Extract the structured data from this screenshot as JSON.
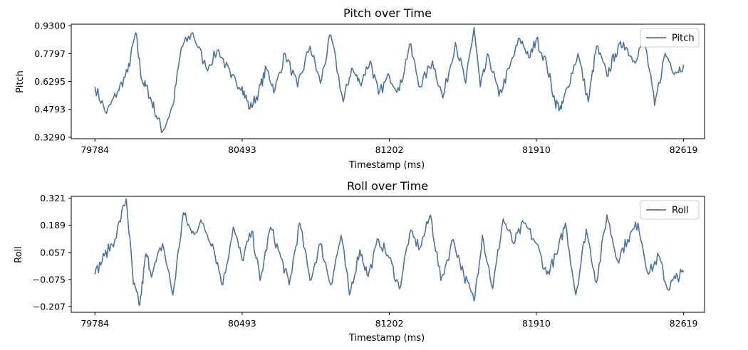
{
  "chart_data": [
    {
      "type": "line",
      "title": "Pitch over Time",
      "xlabel": "Timestamp (ms)",
      "ylabel": "Pitch",
      "xlim": [
        79670,
        82720
      ],
      "ylim": [
        0.321,
        0.938
      ],
      "xticks": [
        79784,
        80493,
        81202,
        81910,
        82619
      ],
      "xtick_labels": [
        "79784",
        "80493",
        "81202",
        "81910",
        "82619"
      ],
      "yticks": [
        0.329,
        0.4793,
        0.6295,
        0.7797,
        0.93
      ],
      "ytick_labels": [
        "0.3290",
        "0.4793",
        "0.6295",
        "0.7797",
        "0.9300"
      ],
      "legend": "top-right",
      "grid": false,
      "series": [
        {
          "name": "Pitch",
          "color": "#4a74a8",
          "x": [
            79784,
            79840,
            79893,
            79942,
            79980,
            80010,
            80040,
            80070,
            80110,
            80160,
            80200,
            80255,
            80320,
            80380,
            80440,
            80493,
            80530,
            80572,
            80610,
            80650,
            80700,
            80760,
            80820,
            80870,
            80920,
            80980,
            81020,
            81060,
            81110,
            81150,
            81202,
            81250,
            81300,
            81350,
            81410,
            81460,
            81520,
            81570,
            81610,
            81640,
            81680,
            81730,
            81780,
            81830,
            81880,
            81910,
            81960,
            82000,
            82030,
            82060,
            82110,
            82160,
            82200,
            82250,
            82290,
            82330,
            82380,
            82430,
            82480,
            82530,
            82580,
            82619
          ],
          "y": [
            0.601,
            0.458,
            0.575,
            0.681,
            0.892,
            0.638,
            0.578,
            0.482,
            0.36,
            0.5,
            0.81,
            0.892,
            0.7,
            0.8,
            0.65,
            0.601,
            0.482,
            0.57,
            0.7,
            0.58,
            0.78,
            0.6,
            0.82,
            0.62,
            0.88,
            0.52,
            0.7,
            0.62,
            0.74,
            0.56,
            0.66,
            0.58,
            0.83,
            0.6,
            0.74,
            0.54,
            0.84,
            0.62,
            0.92,
            0.6,
            0.77,
            0.55,
            0.7,
            0.86,
            0.76,
            0.86,
            0.72,
            0.52,
            0.48,
            0.6,
            0.78,
            0.52,
            0.82,
            0.66,
            0.78,
            0.84,
            0.74,
            0.86,
            0.5,
            0.78,
            0.68,
            0.72
          ]
        }
      ]
    },
    {
      "type": "line",
      "title": "Roll over Time",
      "xlabel": "Timestamp (ms)",
      "ylabel": "Roll",
      "xlim": [
        79670,
        82720
      ],
      "ylim": [
        -0.235,
        0.33
      ],
      "xticks": [
        79784,
        80493,
        81202,
        81910,
        82619
      ],
      "xtick_labels": [
        "79784",
        "80493",
        "81202",
        "81910",
        "82619"
      ],
      "yticks": [
        -0.207,
        -0.075,
        0.057,
        0.189,
        0.321
      ],
      "ytick_labels": [
        "−0.207",
        "−0.075",
        "0.057",
        "0.189",
        "0.321"
      ],
      "legend": "top-right",
      "grid": false,
      "series": [
        {
          "name": "Roll",
          "color": "#4a74a8",
          "x": [
            79784,
            79830,
            79880,
            79935,
            79970,
            80000,
            80030,
            80060,
            80110,
            80160,
            80210,
            80250,
            80300,
            80350,
            80400,
            80450,
            80493,
            80540,
            80580,
            80630,
            80680,
            80720,
            80770,
            80820,
            80870,
            80920,
            80970,
            81010,
            81060,
            81100,
            81150,
            81202,
            81250,
            81300,
            81350,
            81400,
            81450,
            81510,
            81560,
            81610,
            81650,
            81700,
            81750,
            81800,
            81850,
            81910,
            81960,
            82010,
            82050,
            82100,
            82150,
            82200,
            82250,
            82300,
            82350,
            82400,
            82450,
            82500,
            82540,
            82580,
            82619
          ],
          "y": [
            -0.05,
            0.04,
            0.12,
            0.32,
            -0.1,
            -0.2,
            0.05,
            -0.05,
            0.1,
            -0.15,
            0.25,
            0.15,
            0.2,
            0.1,
            -0.1,
            0.18,
            0.02,
            0.16,
            -0.08,
            0.18,
            0.03,
            -0.1,
            0.2,
            -0.08,
            0.1,
            -0.1,
            0.14,
            -0.15,
            0.07,
            -0.06,
            0.12,
            0.03,
            -0.12,
            0.15,
            0.08,
            0.24,
            -0.08,
            0.12,
            -0.05,
            -0.18,
            0.14,
            -0.12,
            0.22,
            0.1,
            0.2,
            0.1,
            -0.05,
            0.05,
            0.2,
            -0.15,
            0.17,
            -0.09,
            0.24,
            0.02,
            0.12,
            0.2,
            -0.05,
            0.04,
            -0.12,
            -0.07,
            -0.04
          ]
        }
      ]
    }
  ]
}
